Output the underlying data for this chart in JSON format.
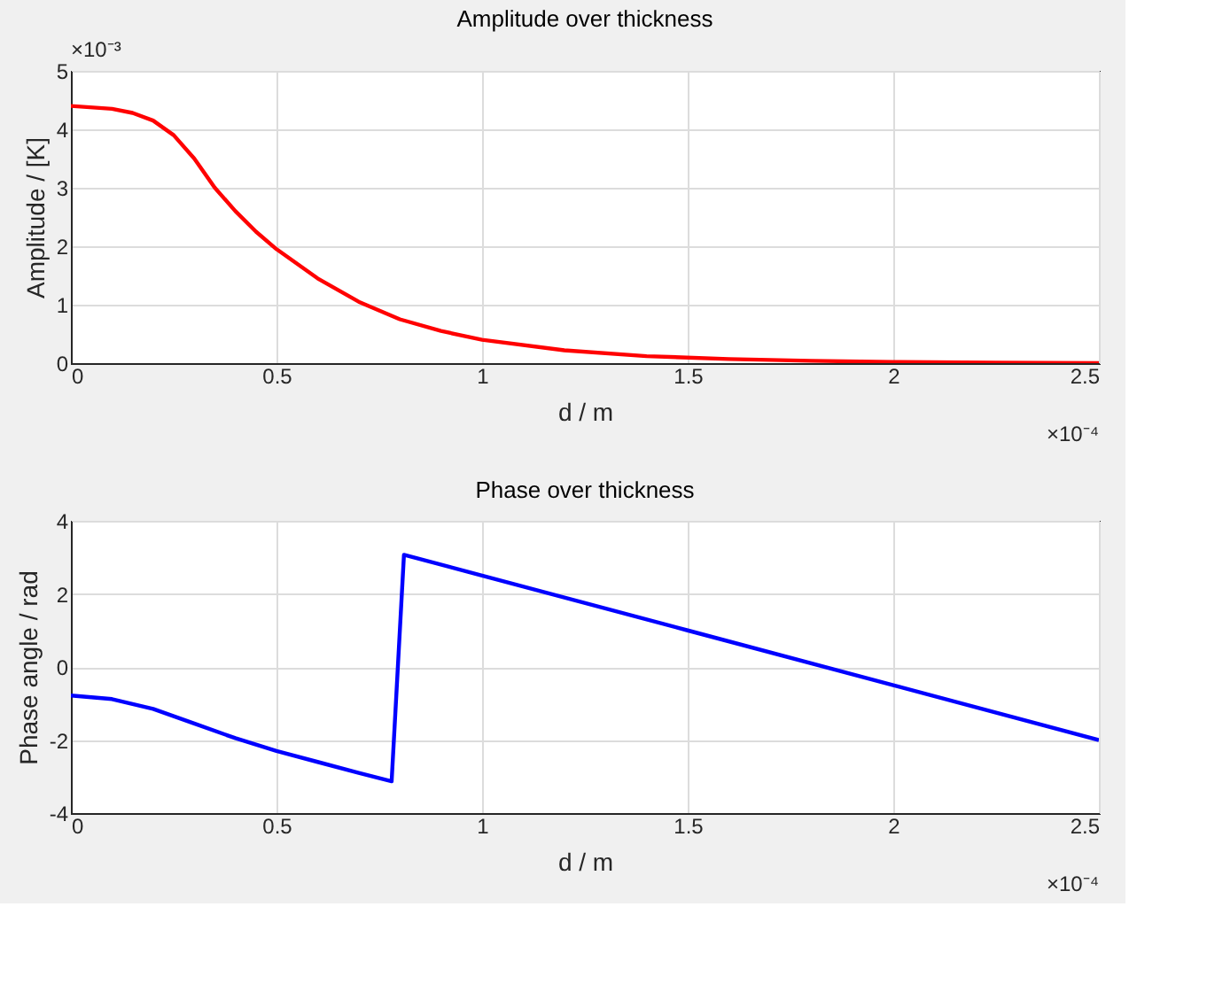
{
  "chart_data": [
    {
      "type": "line",
      "title": "Amplitude over thickness",
      "xlabel": "d / m",
      "ylabel": "Amplitude / [K]",
      "x": [
        0,
        0.1,
        0.15,
        0.2,
        0.25,
        0.3,
        0.35,
        0.4,
        0.45,
        0.5,
        0.6,
        0.7,
        0.8,
        0.9,
        1.0,
        1.2,
        1.4,
        1.6,
        1.8,
        2.0,
        2.25,
        2.5
      ],
      "series": [
        {
          "color": "#ff0000",
          "values": [
            4.4,
            4.35,
            4.28,
            4.15,
            3.9,
            3.5,
            3.0,
            2.6,
            2.25,
            1.95,
            1.45,
            1.05,
            0.75,
            0.55,
            0.4,
            0.22,
            0.12,
            0.07,
            0.04,
            0.02,
            0.01,
            0.0
          ]
        }
      ],
      "xlim": [
        0,
        2.5
      ],
      "xticks": [
        0,
        0.5,
        1,
        1.5,
        2,
        2.5
      ],
      "ylim": [
        0,
        5
      ],
      "yticks": [
        0,
        1,
        2,
        3,
        4,
        5
      ],
      "grid": true,
      "marker": "none",
      "line_style": "solid",
      "annotations": [
        "×10⁻³",
        "×10⁻⁴"
      ]
    },
    {
      "type": "line",
      "title": "Phase over thickness",
      "xlabel": "d / m",
      "ylabel": "Phase angle / rad",
      "x": [
        0,
        0.1,
        0.2,
        0.3,
        0.4,
        0.5,
        0.6,
        0.7,
        0.78,
        0.81,
        1.0,
        1.5,
        2.0,
        2.5
      ],
      "series": [
        {
          "color": "#0000ff",
          "values": [
            -0.78,
            -0.88,
            -1.15,
            -1.55,
            -1.95,
            -2.3,
            -2.6,
            -2.9,
            -3.13,
            3.07,
            2.5,
            1.0,
            -0.5,
            -2.0
          ]
        }
      ],
      "xlim": [
        0,
        2.5
      ],
      "xticks": [
        0,
        0.5,
        1,
        1.5,
        2,
        2.5
      ],
      "ylim": [
        -4,
        4
      ],
      "yticks": [
        -4,
        -2,
        0,
        2,
        4
      ],
      "grid": true,
      "marker": "none",
      "line_style": "solid",
      "annotations": [
        "×10⁻⁴"
      ]
    }
  ]
}
